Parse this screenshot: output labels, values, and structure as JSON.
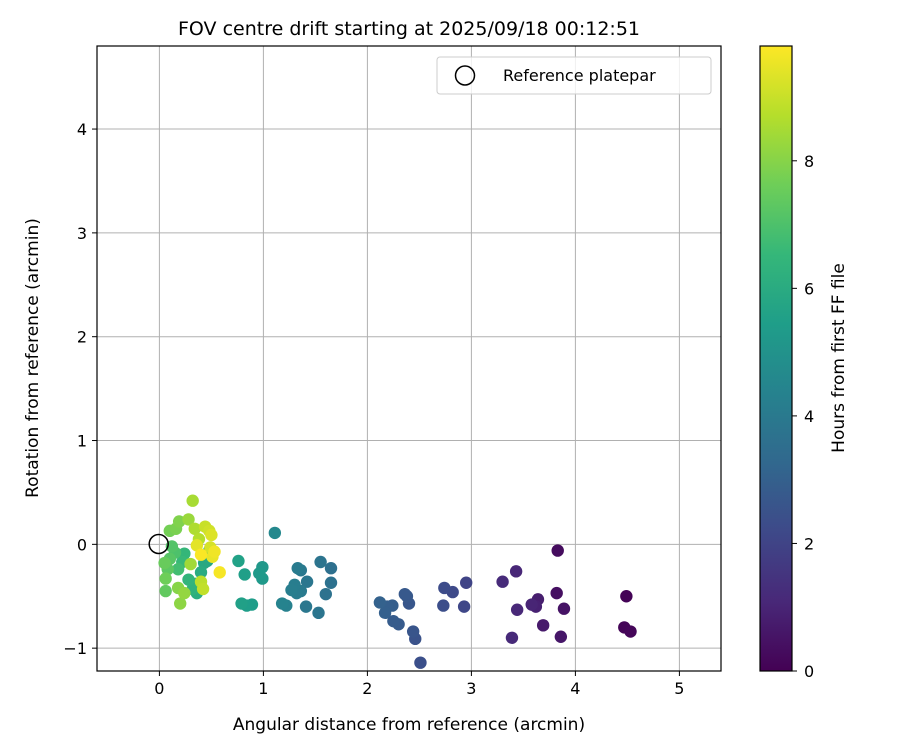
{
  "chart_data": {
    "type": "scatter",
    "title": "FOV centre drift starting at 2025/09/18 00:12:51",
    "xlabel": "Angular distance from reference (arcmin)",
    "ylabel": "Rotation from reference (arcmin)",
    "xlim": [
      -0.6,
      5.4
    ],
    "ylim": [
      -1.22,
      4.8
    ],
    "xticks": [
      0,
      1,
      2,
      3,
      4,
      5
    ],
    "yticks": [
      -1,
      0,
      1,
      2,
      3,
      4
    ],
    "xtick_labels": [
      "0",
      "1",
      "2",
      "3",
      "4",
      "5"
    ],
    "ytick_labels": [
      "−1",
      "0",
      "1",
      "2",
      "3",
      "4"
    ],
    "grid": true,
    "legend": {
      "position": "top-right",
      "label": "Reference platepar"
    },
    "reference_point": {
      "x": 0,
      "y": 0
    },
    "colorbar": {
      "label": "Hours from first FF file",
      "range": [
        0,
        9.8
      ],
      "ticks": [
        0,
        2,
        4,
        6,
        8
      ],
      "tick_labels": [
        "0",
        "2",
        "4",
        "6",
        "8"
      ],
      "colormap": [
        "#440154",
        "#482878",
        "#3e4989",
        "#31688e",
        "#26828e",
        "#1f9e89",
        "#35b779",
        "#6ece58",
        "#b5de2b",
        "#fde725"
      ]
    },
    "series": [
      {
        "name": "FF files",
        "points": [
          [
            4.49,
            -0.5,
            0.05
          ],
          [
            4.47,
            -0.8,
            0.1
          ],
          [
            4.53,
            -0.84,
            0.15
          ],
          [
            3.83,
            -0.06,
            0.3
          ],
          [
            3.82,
            -0.47,
            0.4
          ],
          [
            3.89,
            -0.62,
            0.5
          ],
          [
            3.86,
            -0.89,
            0.6
          ],
          [
            3.69,
            -0.78,
            0.7
          ],
          [
            3.64,
            -0.53,
            0.8
          ],
          [
            3.62,
            -0.6,
            0.9
          ],
          [
            3.58,
            -0.58,
            1.0
          ],
          [
            3.43,
            -0.26,
            1.05
          ],
          [
            3.44,
            -0.63,
            1.1
          ],
          [
            3.39,
            -0.9,
            1.15
          ],
          [
            3.3,
            -0.36,
            1.2
          ],
          [
            2.95,
            -0.37,
            2.0
          ],
          [
            2.93,
            -0.6,
            2.1
          ],
          [
            2.82,
            -0.46,
            2.2
          ],
          [
            2.74,
            -0.42,
            2.3
          ],
          [
            2.73,
            -0.59,
            2.35
          ],
          [
            2.51,
            -1.14,
            2.4
          ],
          [
            2.46,
            -0.91,
            2.5
          ],
          [
            2.44,
            -0.84,
            2.6
          ],
          [
            2.4,
            -0.57,
            2.65
          ],
          [
            2.38,
            -0.5,
            2.7
          ],
          [
            2.36,
            -0.48,
            2.75
          ],
          [
            2.3,
            -0.77,
            2.8
          ],
          [
            2.25,
            -0.74,
            2.85
          ],
          [
            2.24,
            -0.59,
            2.9
          ],
          [
            2.19,
            -0.6,
            2.95
          ],
          [
            2.17,
            -0.66,
            3.0
          ],
          [
            2.12,
            -0.56,
            3.05
          ],
          [
            1.65,
            -0.23,
            3.6
          ],
          [
            1.65,
            -0.37,
            3.65
          ],
          [
            1.6,
            -0.48,
            3.7
          ],
          [
            1.55,
            -0.17,
            3.75
          ],
          [
            1.53,
            -0.66,
            3.8
          ],
          [
            1.42,
            -0.36,
            3.85
          ],
          [
            1.41,
            -0.6,
            3.9
          ],
          [
            1.36,
            -0.25,
            3.95
          ],
          [
            1.36,
            -0.45,
            4.0
          ],
          [
            1.33,
            -0.23,
            4.05
          ],
          [
            1.32,
            -0.47,
            4.1
          ],
          [
            1.3,
            -0.39,
            4.15
          ],
          [
            1.27,
            -0.44,
            4.2
          ],
          [
            1.22,
            -0.59,
            4.3
          ],
          [
            1.18,
            -0.57,
            4.4
          ],
          [
            1.11,
            0.11,
            4.6
          ],
          [
            0.99,
            -0.22,
            5.2
          ],
          [
            0.99,
            -0.33,
            5.25
          ],
          [
            0.96,
            -0.28,
            5.3
          ],
          [
            0.89,
            -0.58,
            5.4
          ],
          [
            0.84,
            -0.59,
            5.45
          ],
          [
            0.82,
            -0.29,
            5.5
          ],
          [
            0.79,
            -0.57,
            5.55
          ],
          [
            0.76,
            -0.16,
            5.6
          ],
          [
            0.48,
            -0.06,
            5.7
          ],
          [
            0.46,
            -0.16,
            5.8
          ],
          [
            0.43,
            -0.18,
            5.9
          ],
          [
            0.4,
            -0.27,
            6.0
          ],
          [
            0.36,
            -0.47,
            6.1
          ],
          [
            0.35,
            -0.38,
            6.2
          ],
          [
            0.32,
            -0.43,
            6.3
          ],
          [
            0.28,
            -0.34,
            6.4
          ],
          [
            0.24,
            -0.09,
            6.5
          ],
          [
            0.22,
            -0.17,
            6.6
          ],
          [
            0.18,
            -0.24,
            6.8
          ],
          [
            0.15,
            -0.08,
            7.0
          ],
          [
            0.12,
            -0.02,
            7.1
          ],
          [
            0.1,
            -0.14,
            7.2
          ],
          [
            0.08,
            -0.24,
            7.3
          ],
          [
            0.06,
            -0.45,
            7.4
          ],
          [
            0.05,
            -0.18,
            7.5
          ],
          [
            0.06,
            -0.33,
            7.6
          ],
          [
            0.1,
            0.13,
            7.7
          ],
          [
            0.16,
            0.15,
            7.8
          ],
          [
            0.19,
            0.22,
            7.9
          ],
          [
            0.18,
            -0.42,
            8.0
          ],
          [
            0.2,
            -0.57,
            8.1
          ],
          [
            0.24,
            -0.47,
            8.2
          ],
          [
            0.28,
            0.24,
            8.3
          ],
          [
            0.3,
            -0.19,
            8.4
          ],
          [
            0.32,
            0.42,
            8.5
          ],
          [
            0.34,
            0.15,
            8.6
          ],
          [
            0.38,
            0.05,
            8.7
          ],
          [
            0.4,
            -0.36,
            8.8
          ],
          [
            0.42,
            -0.43,
            8.9
          ],
          [
            0.44,
            0.17,
            9.0
          ],
          [
            0.48,
            0.13,
            9.1
          ],
          [
            0.49,
            -0.03,
            9.2
          ],
          [
            0.5,
            0.09,
            9.3
          ],
          [
            0.36,
            -0.01,
            9.4
          ],
          [
            0.51,
            -0.12,
            9.5
          ],
          [
            0.53,
            -0.07,
            9.6
          ],
          [
            0.58,
            -0.27,
            9.7
          ],
          [
            0.4,
            -0.1,
            9.75
          ]
        ]
      }
    ]
  }
}
